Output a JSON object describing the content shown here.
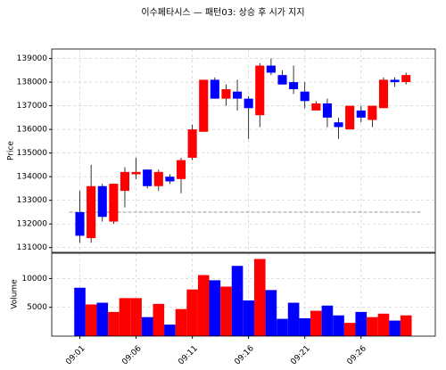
{
  "chart_data": {
    "type": "candlestick",
    "title": "이수페타시스 — 패턴03: 상승 후 시가 지지",
    "y_label": "Price",
    "volume_label": "Volume",
    "categories": [
      "09:01",
      null,
      null,
      null,
      null,
      "09:06",
      null,
      null,
      null,
      null,
      "09:11",
      null,
      null,
      null,
      null,
      "09:16",
      null,
      null,
      null,
      null,
      "09:21",
      null,
      null,
      null,
      null,
      "09:26",
      null,
      null,
      null,
      null
    ],
    "open": [
      132500,
      131400,
      133600,
      132100,
      133400,
      134100,
      134300,
      133600,
      134000,
      133900,
      134800,
      135900,
      138100,
      137300,
      137600,
      137300,
      136600,
      138700,
      138300,
      138000,
      137600,
      136800,
      137100,
      136300,
      136000,
      136800,
      136400,
      136900,
      138100,
      138000
    ],
    "high": [
      133400,
      134500,
      133700,
      133700,
      134400,
      134800,
      134300,
      134300,
      134100,
      134800,
      136200,
      138100,
      138200,
      137900,
      138100,
      137400,
      138800,
      139000,
      138500,
      138700,
      138000,
      137200,
      137300,
      136500,
      137000,
      137000,
      137000,
      138200,
      138200,
      138400
    ],
    "low": [
      131200,
      131200,
      132100,
      132000,
      132700,
      133900,
      133500,
      133400,
      133700,
      133300,
      134700,
      135900,
      137300,
      137000,
      136800,
      135600,
      136100,
      138300,
      137900,
      137500,
      136900,
      136800,
      136100,
      135600,
      136000,
      136300,
      136100,
      136900,
      137800,
      137900
    ],
    "close": [
      131500,
      133600,
      132300,
      133700,
      134200,
      134200,
      133600,
      134200,
      133800,
      134700,
      136000,
      138100,
      137300,
      137700,
      137300,
      136900,
      138700,
      138400,
      137900,
      137700,
      137200,
      137100,
      136500,
      136100,
      137000,
      136500,
      137000,
      138100,
      138000,
      138300
    ],
    "volume": [
      8400,
      5500,
      5800,
      4200,
      6600,
      6600,
      3300,
      5600,
      2000,
      4700,
      8100,
      10600,
      9700,
      8600,
      12200,
      6200,
      13400,
      8000,
      3000,
      5800,
      3100,
      4400,
      5300,
      3600,
      2300,
      4200,
      3300,
      3900,
      2700,
      3600
    ],
    "hline": 132500,
    "up_color": "#ff0000",
    "down_color": "#0000ff",
    "xlim": [
      -2.5,
      31.6
    ],
    "ylim": [
      130800,
      139400
    ],
    "yticks": [
      131000,
      132000,
      133000,
      134000,
      135000,
      136000,
      137000,
      138000,
      139000
    ],
    "volume_ylim": [
      0,
      14400
    ],
    "volume_yticks": [
      5000,
      10000
    ],
    "grid": true
  }
}
